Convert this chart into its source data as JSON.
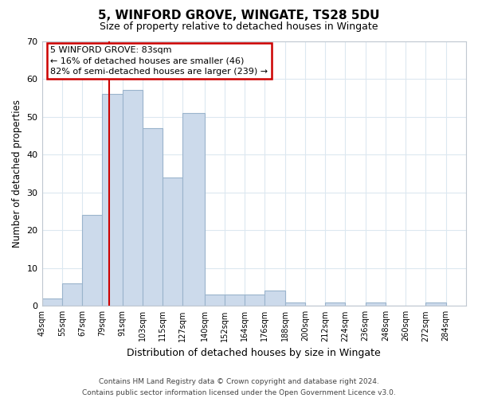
{
  "title": "5, WINFORD GROVE, WINGATE, TS28 5DU",
  "subtitle": "Size of property relative to detached houses in Wingate",
  "xlabel": "Distribution of detached houses by size in Wingate",
  "ylabel": "Number of detached properties",
  "bar_color": "#ccdaeb",
  "bar_edge_color": "#9ab4cc",
  "highlight_color": "#cc0000",
  "highlight_value": 83,
  "bins": [
    43,
    55,
    67,
    79,
    91,
    103,
    115,
    127,
    140,
    152,
    164,
    176,
    188,
    200,
    212,
    224,
    236,
    248,
    260,
    272,
    284
  ],
  "counts": [
    2,
    6,
    24,
    56,
    57,
    47,
    34,
    51,
    3,
    3,
    3,
    4,
    1,
    0,
    1,
    0,
    1,
    0,
    0,
    1
  ],
  "tick_labels": [
    "43sqm",
    "55sqm",
    "67sqm",
    "79sqm",
    "91sqm",
    "103sqm",
    "115sqm",
    "127sqm",
    "140sqm",
    "152sqm",
    "164sqm",
    "176sqm",
    "188sqm",
    "200sqm",
    "212sqm",
    "224sqm",
    "236sqm",
    "248sqm",
    "260sqm",
    "272sqm",
    "284sqm"
  ],
  "ylim": [
    0,
    70
  ],
  "yticks": [
    0,
    10,
    20,
    30,
    40,
    50,
    60,
    70
  ],
  "annotation_line1": "5 WINFORD GROVE: 83sqm",
  "annotation_line2": "← 16% of detached houses are smaller (46)",
  "annotation_line3": "82% of semi-detached houses are larger (239) →",
  "annotation_box_color": "#ffffff",
  "annotation_box_edge": "#cc0000",
  "footer_line1": "Contains HM Land Registry data © Crown copyright and database right 2024.",
  "footer_line2": "Contains public sector information licensed under the Open Government Licence v3.0.",
  "bg_color": "#ffffff",
  "grid_color": "#dce8f0",
  "spine_color": "#c0c8d0"
}
